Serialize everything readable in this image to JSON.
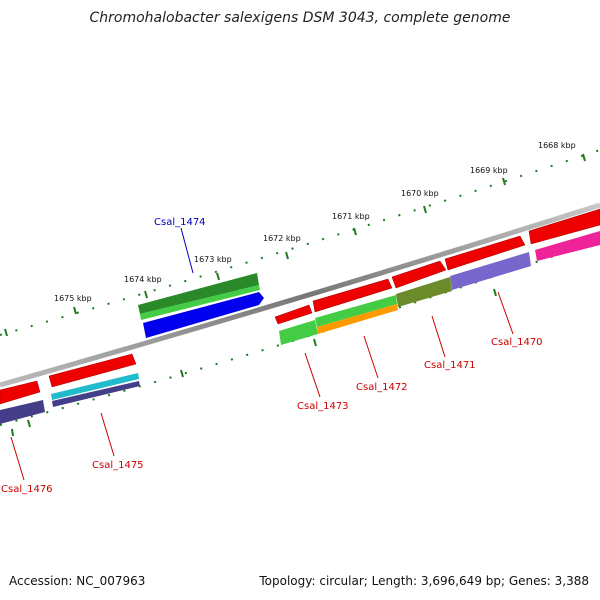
{
  "title": "Chromohalobacter salexigens DSM 3043, complete genome",
  "footer": {
    "accession": "Accession: NC_007963",
    "topology": "Topology: circular; Length: 3,696,649 bp; Genes: 3,388"
  },
  "kbp_labels": [
    "1668 kbp",
    "1669 kbp",
    "1670 kbp",
    "1671 kbp",
    "1672 kbp",
    "1673 kbp",
    "1674 kbp",
    "1675 kbp"
  ],
  "gene_labels": {
    "csal_1470": "Csal_1470",
    "csal_1471": "Csal_1471",
    "csal_1472": "Csal_1472",
    "csal_1473": "Csal_1473",
    "csal_1474": "Csal_1474",
    "csal_1475": "Csal_1475",
    "csal_1476": "Csal_1476"
  },
  "colors": {
    "backbone": "#8a8a8a",
    "tick": "#1e7a1e",
    "cds_red": "#ee0000",
    "label_red": "#cc0000",
    "label_blue": "#0000bb",
    "green_dark": "#2a8a2a",
    "green_light": "#44cc44",
    "blue": "#0000ee",
    "orange": "#ff9900",
    "olive": "#6b8a2a",
    "lavender": "#7766cc",
    "magenta": "#ee2299",
    "navy": "#443d88",
    "cyan": "#22bbcc"
  }
}
